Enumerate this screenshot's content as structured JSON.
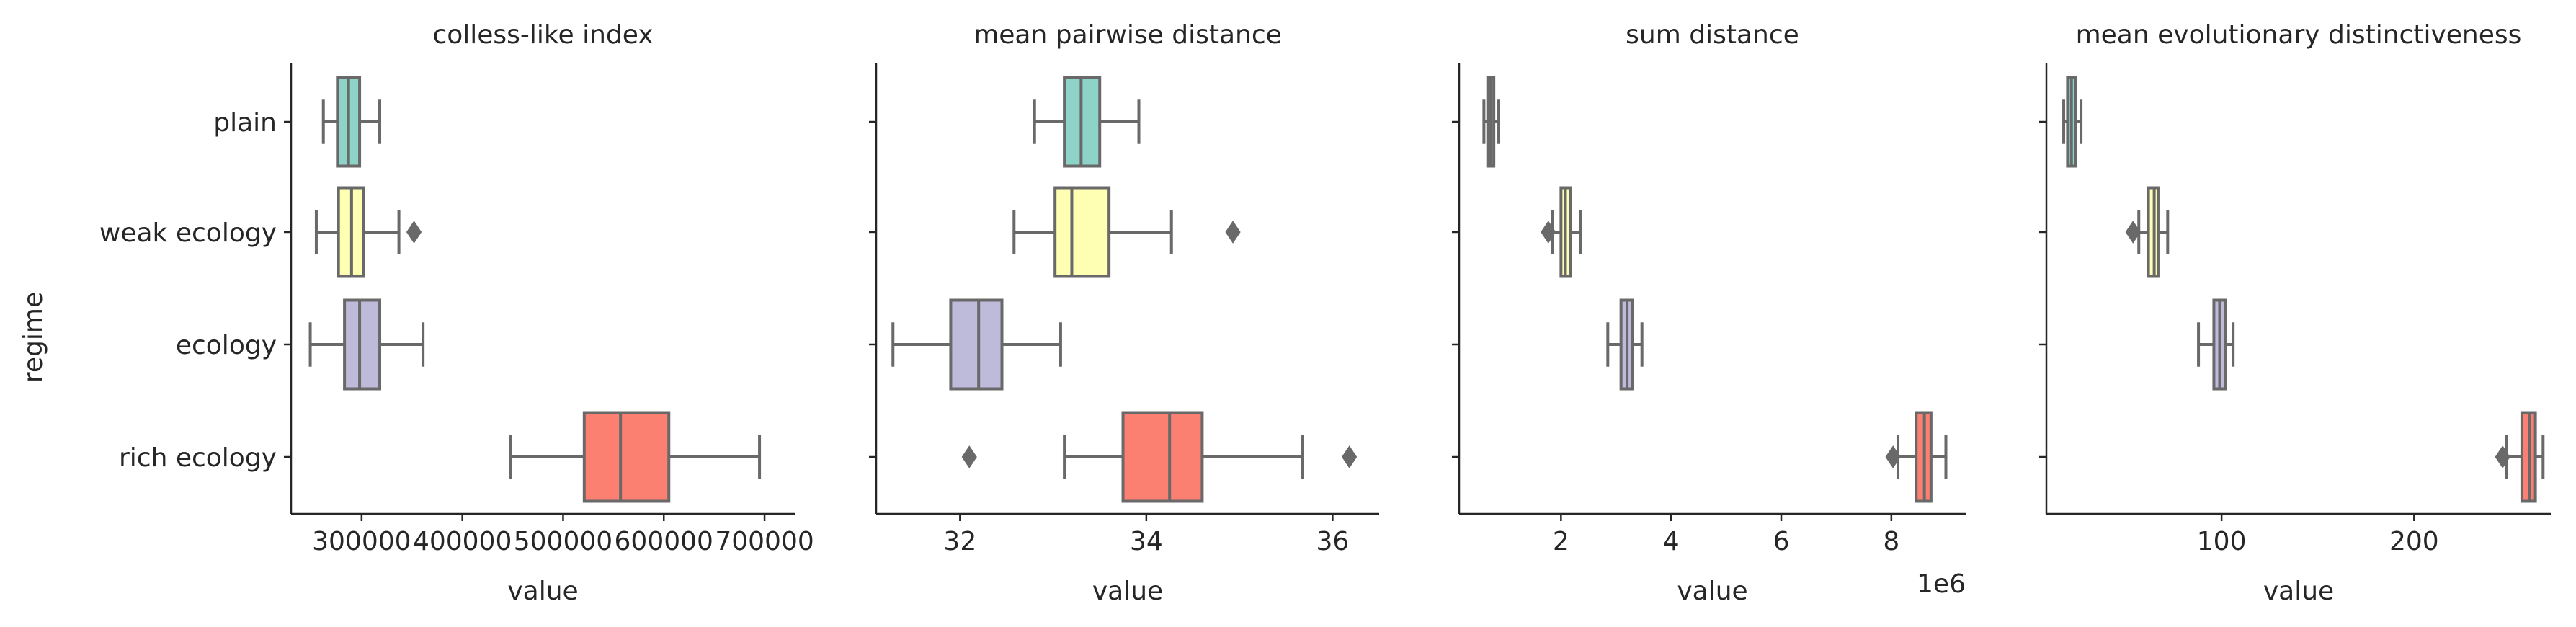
{
  "figure": {
    "ylabel": "regime",
    "categories": [
      "plain",
      "weak ecology",
      "ecology",
      "rich ecology"
    ],
    "colors": [
      "#8dd3c7",
      "#ffffb3",
      "#bebada",
      "#fb8072"
    ],
    "edge_color": "#696969"
  },
  "chart_data": [
    {
      "type": "box",
      "title": "colless-like index",
      "xlabel": "value",
      "xlim": [
        230000,
        730000
      ],
      "xticks": [
        300000,
        400000,
        500000,
        600000,
        700000
      ],
      "xtick_labels": [
        "300000",
        "400000",
        "500000",
        "600000",
        "700000"
      ],
      "offset_label": "",
      "boxes": [
        {
          "category": "plain",
          "whislo": 262000,
          "q1": 276000,
          "median": 287000,
          "q3": 298000,
          "whishi": 318000,
          "fliers": []
        },
        {
          "category": "weak ecology",
          "whislo": 255000,
          "q1": 277000,
          "median": 290000,
          "q3": 302000,
          "whishi": 337000,
          "fliers": [
            352000
          ]
        },
        {
          "category": "ecology",
          "whislo": 249000,
          "q1": 283000,
          "median": 298000,
          "q3": 318000,
          "whishi": 361000,
          "fliers": []
        },
        {
          "category": "rich ecology",
          "whislo": 448000,
          "q1": 521000,
          "median": 557000,
          "q3": 605000,
          "whishi": 695000,
          "fliers": []
        }
      ]
    },
    {
      "type": "box",
      "title": "mean pairwise distance",
      "xlabel": "value",
      "xlim": [
        31.1,
        36.5
      ],
      "xticks": [
        32,
        34,
        36
      ],
      "xtick_labels": [
        "32",
        "34",
        "36"
      ],
      "offset_label": "",
      "boxes": [
        {
          "category": "plain",
          "whislo": 32.8,
          "q1": 33.12,
          "median": 33.3,
          "q3": 33.5,
          "whishi": 33.92,
          "fliers": []
        },
        {
          "category": "weak ecology",
          "whislo": 32.58,
          "q1": 33.02,
          "median": 33.2,
          "q3": 33.6,
          "whishi": 34.27,
          "fliers": [
            34.93
          ]
        },
        {
          "category": "ecology",
          "whislo": 31.28,
          "q1": 31.9,
          "median": 32.2,
          "q3": 32.45,
          "whishi": 33.08,
          "fliers": []
        },
        {
          "category": "rich ecology",
          "whislo": 33.12,
          "q1": 33.75,
          "median": 34.25,
          "q3": 34.6,
          "whishi": 35.68,
          "fliers": [
            32.1,
            36.18
          ]
        }
      ]
    },
    {
      "type": "box",
      "title": "sum distance",
      "xlabel": "value",
      "xlim": [
        0.15,
        9.35
      ],
      "xticks": [
        2,
        4,
        6,
        8
      ],
      "xtick_labels": [
        "2",
        "4",
        "6",
        "8"
      ],
      "offset_label": "1e6",
      "boxes": [
        {
          "category": "plain",
          "whislo": 0.6,
          "q1": 0.67,
          "median": 0.72,
          "q3": 0.78,
          "whishi": 0.87,
          "fliers": []
        },
        {
          "category": "weak ecology",
          "whislo": 1.85,
          "q1": 2.0,
          "median": 2.08,
          "q3": 2.17,
          "whishi": 2.35,
          "fliers": [
            1.77
          ]
        },
        {
          "category": "ecology",
          "whislo": 2.85,
          "q1": 3.09,
          "median": 3.2,
          "q3": 3.3,
          "whishi": 3.47,
          "fliers": []
        },
        {
          "category": "rich ecology",
          "whislo": 8.12,
          "q1": 8.45,
          "median": 8.6,
          "q3": 8.72,
          "whishi": 8.99,
          "fliers": [
            8.03
          ]
        }
      ]
    },
    {
      "type": "box",
      "title": "mean evolutionary distinctiveness",
      "xlabel": "value",
      "xlim": [
        9,
        271
      ],
      "xticks": [
        100,
        200
      ],
      "xtick_labels": [
        "100",
        "200"
      ],
      "offset_label": "",
      "boxes": [
        {
          "category": "plain",
          "whislo": 18,
          "q1": 20,
          "median": 22,
          "q3": 24,
          "whishi": 27,
          "fliers": []
        },
        {
          "category": "weak ecology",
          "whislo": 57,
          "q1": 62,
          "median": 65,
          "q3": 67,
          "whishi": 72,
          "fliers": [
            54
          ]
        },
        {
          "category": "ecology",
          "whislo": 88,
          "q1": 96,
          "median": 99,
          "q3": 102,
          "whishi": 106,
          "fliers": []
        },
        {
          "category": "rich ecology",
          "whislo": 248,
          "q1": 256,
          "median": 260,
          "q3": 263,
          "whishi": 267,
          "fliers": [
            246
          ]
        }
      ]
    }
  ]
}
